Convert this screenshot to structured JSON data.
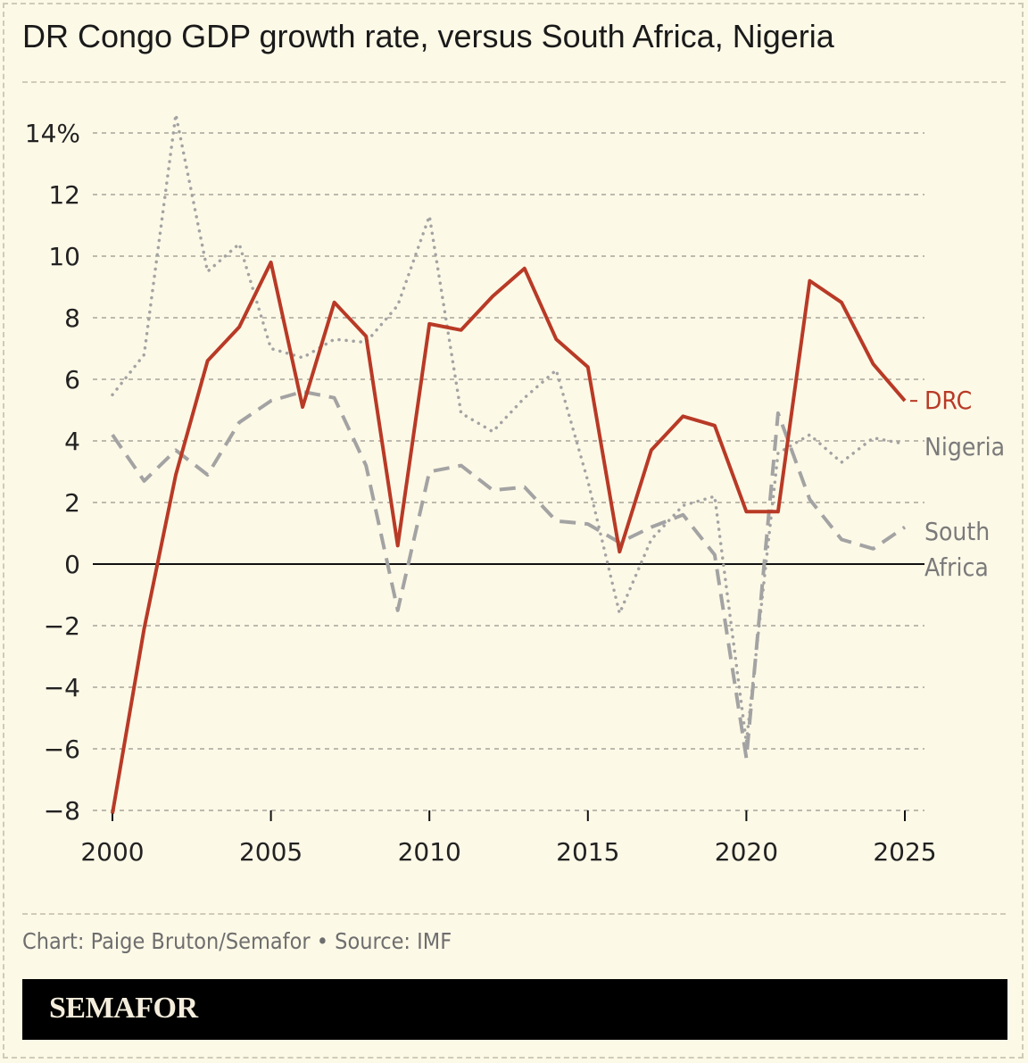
{
  "title": "DR Congo GDP growth rate, versus South Africa, Nigeria",
  "credit": "Chart: Paige Bruton/Semafor • Source: IMF",
  "logo": "SEMAFOR",
  "chart_data": {
    "type": "line",
    "title": "DR Congo GDP growth rate, versus South Africa, Nigeria",
    "x": [
      2000,
      2001,
      2002,
      2003,
      2004,
      2005,
      2006,
      2007,
      2008,
      2009,
      2010,
      2011,
      2012,
      2013,
      2014,
      2015,
      2016,
      2017,
      2018,
      2019,
      2020,
      2021,
      2022,
      2023,
      2024,
      2025
    ],
    "xticks": [
      "2000",
      "2005",
      "2010",
      "2015",
      "2020",
      "2025"
    ],
    "yticks": [
      "−8",
      "−6",
      "−4",
      "−2",
      "0",
      "2",
      "4",
      "6",
      "8",
      "10",
      "12",
      "14%"
    ],
    "ylim": [
      -8,
      14
    ],
    "grid": true,
    "series": [
      {
        "name": "DRC",
        "color": "#b83a26",
        "style": "solid",
        "values": [
          -8.1,
          -2.1,
          2.9,
          6.6,
          7.7,
          9.8,
          5.1,
          8.5,
          7.4,
          0.6,
          7.8,
          7.6,
          8.7,
          9.6,
          7.3,
          6.4,
          0.4,
          3.7,
          4.8,
          4.5,
          1.7,
          1.7,
          9.2,
          8.5,
          6.5,
          5.3
        ]
      },
      {
        "name": "Nigeria",
        "color": "#a3a3a3",
        "style": "dotted",
        "values": [
          5.5,
          6.8,
          14.6,
          9.5,
          10.4,
          7.0,
          6.7,
          7.3,
          7.2,
          8.4,
          11.3,
          4.9,
          4.3,
          5.4,
          6.3,
          2.7,
          -1.6,
          0.8,
          1.9,
          2.2,
          -5.8,
          3.6,
          4.2,
          3.3,
          4.1,
          3.9
        ]
      },
      {
        "name": "South Africa",
        "color": "#a3a3a3",
        "style": "dashed",
        "values": [
          4.2,
          2.7,
          3.7,
          2.9,
          4.6,
          5.3,
          5.6,
          5.4,
          3.2,
          -1.5,
          3.0,
          3.2,
          2.4,
          2.5,
          1.4,
          1.3,
          0.7,
          1.2,
          1.6,
          0.3,
          -6.3,
          4.9,
          2.1,
          0.8,
          0.5,
          1.2
        ]
      }
    ],
    "labels": {
      "drc": "DRC",
      "nigeria": "Nigeria",
      "south_africa_1": "South",
      "south_africa_2": "Africa"
    }
  }
}
